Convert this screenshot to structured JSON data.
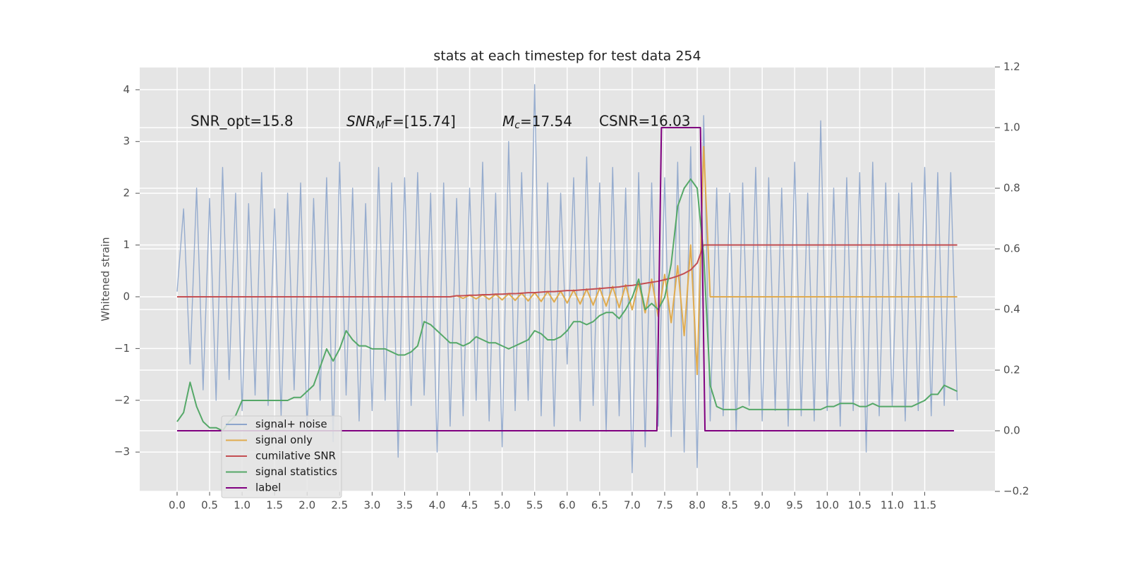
{
  "chart_data": {
    "type": "line",
    "title": "stats at each timestep for test data 254",
    "ylabel": "Whitened strain",
    "annotations": [
      {
        "text": "SNR_opt=15.8"
      },
      {
        "base": "SNR",
        "sub": "M",
        "suffix": "F=[15.74]"
      },
      {
        "base": "M",
        "sub": "c",
        "suffix": "=17.54"
      },
      {
        "text": "CSNR=16.03"
      }
    ],
    "xlim": [
      -0.575,
      12.58
    ],
    "ylim": [
      -3.76,
      4.44
    ],
    "y2lim": [
      -0.2,
      1.2
    ],
    "xticks": [
      {
        "value": 0,
        "label": "0.0"
      },
      0.5,
      {
        "value": 1,
        "label": "1.0"
      },
      1.5,
      {
        "value": 2,
        "label": "2.0"
      },
      2.5,
      {
        "value": 3,
        "label": "3.0"
      },
      3.5,
      {
        "value": 4,
        "label": "4.0"
      },
      4.5,
      {
        "value": 5,
        "label": "5.0"
      },
      5.5,
      {
        "value": 6,
        "label": "6.0"
      },
      6.5,
      {
        "value": 7,
        "label": "7.0"
      },
      7.5,
      {
        "value": 8,
        "label": "8.0"
      },
      8.5,
      {
        "value": 9,
        "label": "9.0"
      },
      9.5,
      {
        "value": 10,
        "label": "10.0"
      },
      10.5,
      {
        "value": 11,
        "label": "11.0"
      },
      11.5
    ],
    "yticks": [
      {
        "value": -3,
        "label": "−3"
      },
      {
        "value": -2,
        "label": "−2"
      },
      {
        "value": -1,
        "label": "−1"
      },
      0,
      1,
      2,
      3,
      4
    ],
    "y2ticks": [
      {
        "value": -0.2,
        "label": "−0.2"
      },
      {
        "value": 0,
        "label": "0.0"
      },
      0.2,
      0.4,
      0.6,
      0.8,
      {
        "value": 1,
        "label": "1.0"
      },
      1.2
    ],
    "grid": true,
    "legend": "lower left",
    "x": [
      0,
      0.1,
      0.2,
      0.3,
      0.4,
      0.5,
      0.6,
      0.7,
      0.8,
      0.9,
      1,
      1.1,
      1.2,
      1.3,
      1.4,
      1.5,
      1.6,
      1.7,
      1.8,
      1.9,
      2,
      2.1,
      2.2,
      2.3,
      2.4,
      2.5,
      2.6,
      2.7,
      2.8,
      2.9,
      3,
      3.1,
      3.2,
      3.3,
      3.4,
      3.5,
      3.6,
      3.7,
      3.8,
      3.9,
      4,
      4.1,
      4.2,
      4.3,
      4.4,
      4.5,
      4.6,
      4.7,
      4.8,
      4.9,
      5,
      5.1,
      5.2,
      5.3,
      5.4,
      5.5,
      5.6,
      5.7,
      5.8,
      5.9,
      6,
      6.1,
      6.2,
      6.3,
      6.4,
      6.5,
      6.6,
      6.7,
      6.8,
      6.9,
      7,
      7.1,
      7.2,
      7.3,
      7.4,
      7.5,
      7.6,
      7.7,
      7.8,
      7.9,
      8,
      8.1,
      8.2,
      8.3,
      8.4,
      8.5,
      8.6,
      8.7,
      8.8,
      8.9,
      9,
      9.1,
      9.2,
      9.3,
      9.4,
      9.5,
      9.6,
      9.7,
      9.8,
      9.9,
      10,
      10.1,
      10.2,
      10.3,
      10.4,
      10.5,
      10.6,
      10.7,
      10.8,
      10.9,
      11,
      11.1,
      11.2,
      11.3,
      11.4,
      11.5,
      11.6,
      11.7,
      11.8,
      11.9,
      12
    ],
    "series": [
      {
        "name": "signal+ noise",
        "color": "#8da5cb",
        "values": [
          0.1,
          1.7,
          -1.3,
          2.1,
          -1.8,
          1.9,
          -2.0,
          2.5,
          -1.6,
          2.0,
          -2.2,
          1.8,
          -1.9,
          2.4,
          -2.1,
          1.7,
          -2.3,
          2.0,
          -1.8,
          2.2,
          -2.6,
          1.9,
          -2.0,
          2.3,
          -2.8,
          2.6,
          -1.9,
          2.1,
          -2.4,
          1.8,
          -2.2,
          2.5,
          -2.0,
          2.2,
          -3.1,
          2.3,
          -2.1,
          2.4,
          -1.9,
          2.0,
          -3.0,
          2.2,
          -2.5,
          1.9,
          -2.3,
          2.1,
          -2.0,
          2.6,
          -2.4,
          2.0,
          -2.9,
          3.0,
          -2.2,
          2.4,
          -2.0,
          4.1,
          -2.3,
          2.2,
          -2.5,
          2.0,
          -1.3,
          2.3,
          -2.4,
          2.7,
          -2.1,
          2.2,
          -2.6,
          2.5,
          -2.3,
          2.1,
          -3.4,
          2.4,
          -2.9,
          2.2,
          -2.5,
          2.3,
          -2.7,
          2.6,
          -3.0,
          2.9,
          -3.3,
          3.5,
          -2.4,
          2.1,
          -2.3,
          2.0,
          -2.6,
          2.2,
          -2.1,
          2.5,
          -2.4,
          2.3,
          -2.2,
          2.1,
          -2.5,
          2.6,
          -2.3,
          2.0,
          -2.4,
          3.4,
          -2.2,
          2.1,
          -2.5,
          2.3,
          -2.2,
          2.4,
          -3.0,
          2.6,
          -2.3,
          2.2,
          -2.1,
          2.0,
          -2.4,
          2.2,
          -2.2,
          2.5,
          -2.3,
          2.4,
          -2.1,
          2.4,
          -2.0
        ]
      },
      {
        "name": "signal only",
        "color": "#e0ab4e",
        "values": [
          0,
          0,
          0,
          0,
          0,
          0,
          0,
          0,
          0,
          0,
          0,
          0,
          0,
          0,
          0,
          0,
          0,
          0,
          0,
          0,
          0,
          0,
          0,
          0,
          0,
          0,
          0,
          0,
          0,
          0,
          0,
          0,
          0,
          0,
          0,
          0,
          0,
          0,
          0,
          0,
          0,
          0,
          0,
          0.02,
          -0.03,
          0.03,
          -0.04,
          0.04,
          -0.05,
          0.05,
          -0.06,
          0.06,
          -0.07,
          0.07,
          -0.08,
          0.08,
          -0.09,
          0.1,
          -0.1,
          0.11,
          -0.12,
          0.13,
          -0.14,
          0.15,
          -0.16,
          0.17,
          -0.18,
          0.2,
          -0.21,
          0.23,
          -0.25,
          0.28,
          -0.31,
          0.34,
          -0.38,
          0.43,
          -0.5,
          0.6,
          -0.75,
          1.0,
          -1.5,
          2.9,
          0,
          0,
          0,
          0,
          0,
          0,
          0,
          0,
          0,
          0,
          0,
          0,
          0,
          0,
          0,
          0,
          0,
          0,
          0,
          0,
          0,
          0,
          0,
          0,
          0,
          0,
          0,
          0,
          0,
          0,
          0,
          0,
          0,
          0,
          0,
          0,
          0,
          0,
          0
        ]
      },
      {
        "name": "cumilative SNR",
        "color": "#c44e52",
        "values": [
          0,
          0,
          0,
          0,
          0,
          0,
          0,
          0,
          0,
          0,
          0,
          0,
          0,
          0,
          0,
          0,
          0,
          0,
          0,
          0,
          0,
          0,
          0,
          0,
          0,
          0,
          0,
          0,
          0,
          0,
          0,
          0,
          0,
          0,
          0,
          0,
          0,
          0,
          0,
          0,
          0,
          0,
          0,
          0.02,
          0.02,
          0.03,
          0.03,
          0.04,
          0.04,
          0.05,
          0.05,
          0.06,
          0.06,
          0.07,
          0.08,
          0.08,
          0.09,
          0.1,
          0.1,
          0.11,
          0.12,
          0.12,
          0.13,
          0.14,
          0.15,
          0.16,
          0.17,
          0.18,
          0.19,
          0.21,
          0.22,
          0.24,
          0.26,
          0.28,
          0.3,
          0.33,
          0.36,
          0.4,
          0.45,
          0.52,
          0.65,
          1.0,
          1.0,
          1.0,
          1.0,
          1.0,
          1.0,
          1.0,
          1.0,
          1.0,
          1.0,
          1.0,
          1.0,
          1.0,
          1.0,
          1.0,
          1.0,
          1.0,
          1.0,
          1.0,
          1.0,
          1.0,
          1.0,
          1.0,
          1.0,
          1.0,
          1.0,
          1.0,
          1.0,
          1.0,
          1.0,
          1.0,
          1.0,
          1.0,
          1.0,
          1.0,
          1.0,
          1.0,
          1.0,
          1.0,
          1.0
        ]
      },
      {
        "name": "signal statistics",
        "color": "#55a868",
        "axis": "y2",
        "values": [
          0.03,
          0.06,
          0.16,
          0.08,
          0.03,
          0.01,
          0.01,
          0.0,
          0.03,
          0.05,
          0.1,
          0.1,
          0.1,
          0.1,
          0.1,
          0.1,
          0.1,
          0.1,
          0.11,
          0.11,
          0.13,
          0.15,
          0.21,
          0.27,
          0.23,
          0.27,
          0.33,
          0.3,
          0.28,
          0.28,
          0.27,
          0.27,
          0.27,
          0.26,
          0.25,
          0.25,
          0.26,
          0.28,
          0.36,
          0.35,
          0.33,
          0.31,
          0.29,
          0.29,
          0.28,
          0.29,
          0.31,
          0.3,
          0.29,
          0.29,
          0.28,
          0.27,
          0.28,
          0.29,
          0.3,
          0.33,
          0.32,
          0.3,
          0.3,
          0.31,
          0.33,
          0.36,
          0.36,
          0.35,
          0.36,
          0.38,
          0.39,
          0.39,
          0.37,
          0.4,
          0.44,
          0.5,
          0.4,
          0.42,
          0.4,
          0.44,
          0.55,
          0.74,
          0.8,
          0.83,
          0.8,
          0.58,
          0.15,
          0.08,
          0.07,
          0.07,
          0.07,
          0.08,
          0.07,
          0.07,
          0.07,
          0.07,
          0.07,
          0.07,
          0.07,
          0.07,
          0.07,
          0.07,
          0.07,
          0.07,
          0.08,
          0.08,
          0.09,
          0.09,
          0.09,
          0.08,
          0.08,
          0.09,
          0.08,
          0.08,
          0.08,
          0.08,
          0.08,
          0.08,
          0.09,
          0.1,
          0.12,
          0.12,
          0.15,
          0.14,
          0.13
        ]
      },
      {
        "name": "label",
        "color": "#800080",
        "axis": "y2",
        "x": [
          0,
          7.38,
          7.45,
          8.05,
          8.12,
          11.95
        ],
        "values": [
          0,
          0,
          1,
          1,
          0,
          0
        ]
      }
    ]
  }
}
